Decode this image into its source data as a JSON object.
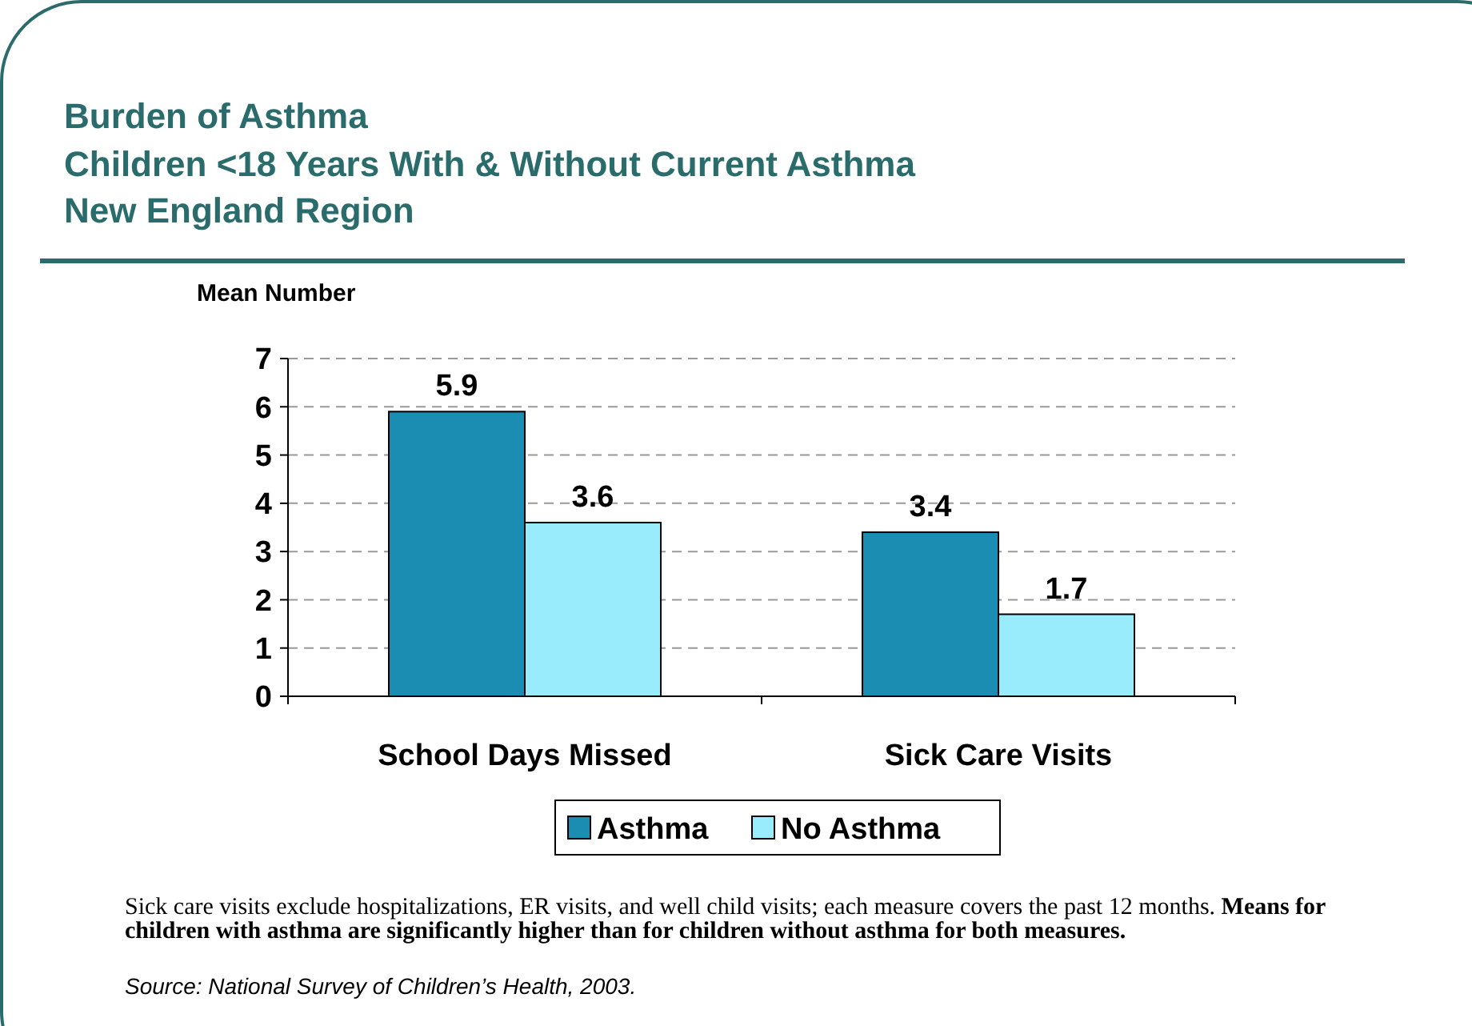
{
  "chart_data": {
    "type": "bar",
    "title": "Burden of Asthma",
    "subtitle": "Children <18 Years With & Without Current Asthma\nNew England Region",
    "ylabel": "Mean Number",
    "categories": [
      "School Days Missed",
      "Sick Care Visits"
    ],
    "series": [
      {
        "name": "Asthma",
        "color": "#1b8db3",
        "values": [
          5.9,
          3.4
        ]
      },
      {
        "name": "No Asthma",
        "color": "#99ecfb",
        "values": [
          3.6,
          1.7
        ]
      }
    ],
    "ylim": [
      0,
      7
    ],
    "yticks": [
      0,
      1,
      2,
      3,
      4,
      5,
      6,
      7
    ],
    "grid": "y",
    "legend": "bottom",
    "data_labels": true,
    "annotations": [
      "Sick care visits exclude hospitalizations, ER visits, and well child visits; each measure covers the past 12 months.",
      "Means for children with asthma are significantly higher than for children without asthma for both measures.",
      "Source: National Survey of Children’s Health, 2003."
    ]
  }
}
